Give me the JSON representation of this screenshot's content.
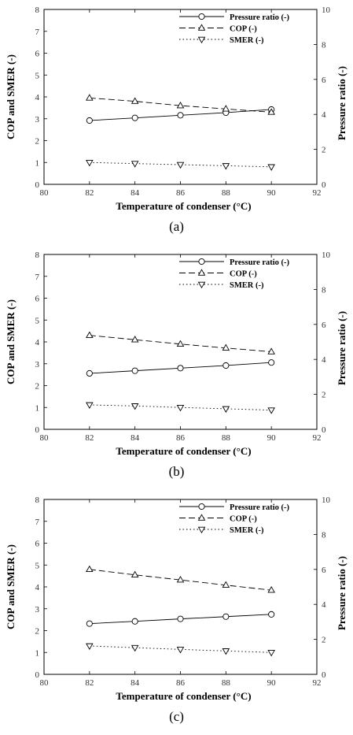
{
  "charts": [
    {
      "caption": "(a)",
      "chart_data": {
        "type": "line",
        "x": [
          82,
          84,
          86,
          88,
          90
        ],
        "xlabel": "Temperature of condenser (°C)",
        "ylabel_left": "COP and SMER (-)",
        "ylabel_right": "Pressure ratio (-)",
        "xlim": [
          80,
          92
        ],
        "ylim_left": [
          0,
          8
        ],
        "ylim_right": [
          0,
          10
        ],
        "x_ticks": [
          80,
          82,
          84,
          86,
          88,
          90,
          92
        ],
        "y_ticks_left": [
          0,
          1,
          2,
          3,
          4,
          5,
          6,
          7,
          8
        ],
        "y_ticks_right": [
          0,
          2,
          4,
          6,
          8,
          10
        ],
        "legend_position": "top-right",
        "series": [
          {
            "name": "Pressure ratio (-)",
            "axis": "right",
            "marker": "circle",
            "style": "solid",
            "values": [
              3.65,
              3.8,
              3.95,
              4.1,
              4.28
            ]
          },
          {
            "name": "COP (-)",
            "axis": "left",
            "marker": "triangle-up",
            "style": "dashed",
            "values": [
              3.95,
              3.8,
              3.6,
              3.45,
              3.3
            ]
          },
          {
            "name": "SMER  (-)",
            "axis": "left",
            "marker": "triangle-down",
            "style": "dotted",
            "values": [
              1.0,
              0.95,
              0.9,
              0.85,
              0.8
            ]
          }
        ]
      }
    },
    {
      "caption": "(b)",
      "chart_data": {
        "type": "line",
        "x": [
          82,
          84,
          86,
          88,
          90
        ],
        "xlabel": "Temperature of condenser (°C)",
        "ylabel_left": "COP and SMER (-)",
        "ylabel_right": "Pressure ratio (-)",
        "xlim": [
          80,
          92
        ],
        "ylim_left": [
          0,
          8
        ],
        "ylim_right": [
          0,
          10
        ],
        "x_ticks": [
          80,
          82,
          84,
          86,
          88,
          90,
          92
        ],
        "y_ticks_left": [
          0,
          1,
          2,
          3,
          4,
          5,
          6,
          7,
          8
        ],
        "y_ticks_right": [
          0,
          2,
          4,
          6,
          8,
          10
        ],
        "legend_position": "top-right",
        "series": [
          {
            "name": "Pressure ratio (-)",
            "axis": "right",
            "marker": "circle",
            "style": "solid",
            "values": [
              3.2,
              3.35,
              3.5,
              3.65,
              3.82
            ]
          },
          {
            "name": "COP (-)",
            "axis": "left",
            "marker": "triangle-up",
            "style": "dashed",
            "values": [
              4.3,
              4.1,
              3.9,
              3.72,
              3.55
            ]
          },
          {
            "name": "SMER  (-)",
            "axis": "left",
            "marker": "triangle-down",
            "style": "dotted",
            "values": [
              1.12,
              1.07,
              1.0,
              0.94,
              0.88
            ]
          }
        ]
      }
    },
    {
      "caption": "(c)",
      "chart_data": {
        "type": "line",
        "x": [
          82,
          84,
          86,
          88,
          90
        ],
        "xlabel": "Temperature of condenser (°C)",
        "ylabel_left": "COP and SMER (-)",
        "ylabel_right": "Pressure ratio (-)",
        "xlim": [
          80,
          92
        ],
        "ylim_left": [
          0,
          8
        ],
        "ylim_right": [
          0,
          10
        ],
        "x_ticks": [
          80,
          82,
          84,
          86,
          88,
          90,
          92
        ],
        "y_ticks_left": [
          0,
          1,
          2,
          3,
          4,
          5,
          6,
          7,
          8
        ],
        "y_ticks_right": [
          0,
          2,
          4,
          6,
          8,
          10
        ],
        "legend_position": "top-right",
        "series": [
          {
            "name": "Pressure ratio (-)",
            "axis": "right",
            "marker": "circle",
            "style": "solid",
            "values": [
              2.9,
              3.03,
              3.17,
              3.3,
              3.43
            ]
          },
          {
            "name": "COP (-)",
            "axis": "left",
            "marker": "triangle-up",
            "style": "dashed",
            "values": [
              4.8,
              4.55,
              4.32,
              4.08,
              3.85
            ]
          },
          {
            "name": "SMER  (-)",
            "axis": "left",
            "marker": "triangle-down",
            "style": "dotted",
            "values": [
              1.3,
              1.22,
              1.14,
              1.07,
              1.0
            ]
          }
        ]
      }
    }
  ]
}
